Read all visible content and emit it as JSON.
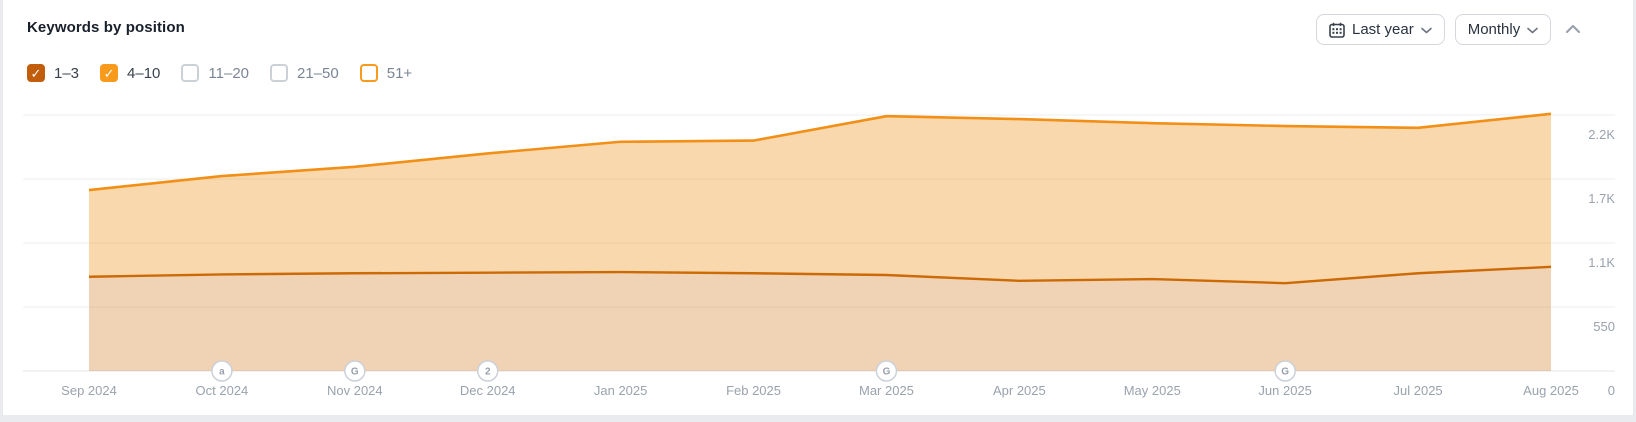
{
  "header": {
    "title": "Keywords by position"
  },
  "controls": {
    "date_range": {
      "label": "Last year",
      "icon": "calendar-icon",
      "chevron": "chevron-down-icon"
    },
    "granularity": {
      "label": "Monthly",
      "chevron": "chevron-down-icon"
    },
    "collapse": {
      "icon": "chevron-up-icon"
    }
  },
  "filters": {
    "items": [
      {
        "label": "1–3",
        "checked": true,
        "color": "#c25e0b"
      },
      {
        "label": "4–10",
        "checked": true,
        "color": "#f89b1c"
      },
      {
        "label": "11–20",
        "checked": false,
        "color": null
      },
      {
        "label": "21–50",
        "checked": false,
        "color": null
      },
      {
        "label": "51+",
        "checked": false,
        "color": "#f89b1c"
      }
    ]
  },
  "chart_data": {
    "type": "area",
    "stacked": true,
    "title": "Keywords by position",
    "xlabel": "",
    "ylabel": "",
    "grid": "horizontal",
    "legend_position": "filters-top-left",
    "x": [
      "Sep 2024",
      "Oct 2024",
      "Nov 2024",
      "Dec 2024",
      "Jan 2025",
      "Feb 2025",
      "Mar 2025",
      "Apr 2025",
      "May 2025",
      "Jun 2025",
      "Jul 2025",
      "Aug 2025"
    ],
    "series": [
      {
        "name": "1–3",
        "line_color": "#cc6a06",
        "fill_color": "rgba(204,106,6,0.30)",
        "values": [
          810,
          830,
          840,
          845,
          850,
          840,
          825,
          775,
          790,
          755,
          840,
          895
        ]
      },
      {
        "name": "4–10",
        "line_color": "#f18f16",
        "fill_color": "rgba(241,143,22,0.35)",
        "values": [
          745,
          845,
          915,
          1025,
          1120,
          1140,
          1365,
          1390,
          1340,
          1350,
          1250,
          1315
        ]
      }
    ],
    "stacked_totals": [
      1555,
      1675,
      1755,
      1870,
      1970,
      1980,
      2190,
      2165,
      2130,
      2105,
      2090,
      2210
    ],
    "ylim": [
      0,
      2330
    ],
    "y_ticks": [
      {
        "label": "2.2K",
        "value": 2200
      },
      {
        "label": "1.7K",
        "value": 1650
      },
      {
        "label": "1.1K",
        "value": 1100
      },
      {
        "label": "550",
        "value": 550
      },
      {
        "label": "0",
        "value": 0
      }
    ],
    "markers": [
      {
        "x": "Oct 2024",
        "glyph": "a"
      },
      {
        "x": "Nov 2024",
        "glyph": "G"
      },
      {
        "x": "Dec 2024",
        "glyph": "2"
      },
      {
        "x": "Mar 2025",
        "glyph": "G"
      },
      {
        "x": "Jun 2025",
        "glyph": "G"
      }
    ]
  }
}
